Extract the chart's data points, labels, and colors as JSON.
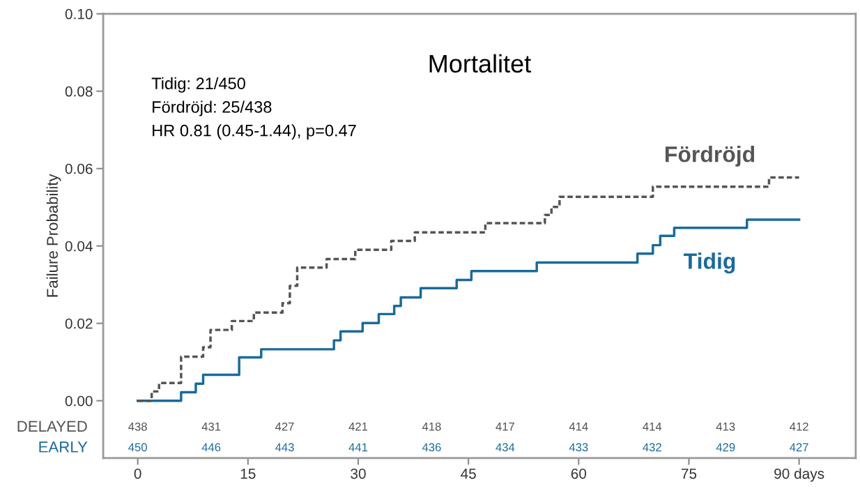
{
  "chart_data": {
    "type": "step",
    "title": "Mortalitet",
    "ylabel": "Failure Probability",
    "xlim": [
      -4.7,
      97.7
    ],
    "ylim": [
      -0.0148,
      0.1
    ],
    "xticks": [
      0,
      15,
      30,
      45,
      60,
      75,
      {
        "value": 90,
        "label": "90 days"
      }
    ],
    "yticks": [
      {
        "value": 0,
        "label": "0.00"
      },
      {
        "value": 0.02,
        "label": "0.02"
      },
      {
        "value": 0.04,
        "label": "0.04"
      },
      {
        "value": 0.06,
        "label": "0.06"
      },
      {
        "value": 0.08,
        "label": "0.08"
      },
      {
        "value": 0.1,
        "label": "0.10"
      }
    ],
    "grid": false,
    "legend": false,
    "series": [
      {
        "name": "Fördröjd",
        "color": "#555555",
        "line_style": "dashed",
        "x": [
          0,
          1.9,
          2.9,
          5.9,
          8.9,
          9.9,
          12.8,
          15.8,
          19.7,
          20.7,
          21.7,
          25.7,
          29.6,
          34.5,
          37.7,
          47.3,
          55.4,
          56.3,
          57.4,
          70.1,
          85.9,
          90
        ],
        "values": [
          0,
          0.0024,
          0.0046,
          0.0114,
          0.0138,
          0.0183,
          0.0206,
          0.0228,
          0.0252,
          0.0297,
          0.0344,
          0.0366,
          0.039,
          0.0413,
          0.0435,
          0.0459,
          0.048,
          0.0501,
          0.0527,
          0.0553,
          0.0577,
          0.0577
        ]
      },
      {
        "name": "Tidig",
        "color": "#1a6a9a",
        "line_style": "solid",
        "x": [
          0,
          5.9,
          7.9,
          8.9,
          13.8,
          16.8,
          26.7,
          27.6,
          30.6,
          32.8,
          34.9,
          35.8,
          38.5,
          43.4,
          45.4,
          54.3,
          68.0,
          70.1,
          71.1,
          73.0,
          82.9,
          90
        ],
        "values": [
          0,
          0.0022,
          0.0044,
          0.0067,
          0.0112,
          0.0133,
          0.0156,
          0.0179,
          0.0201,
          0.0224,
          0.0245,
          0.0267,
          0.0291,
          0.0312,
          0.0335,
          0.0357,
          0.038,
          0.0402,
          0.0426,
          0.0447,
          0.0468,
          0.0468
        ]
      }
    ],
    "annotations": [
      "Tidig: 21/450",
      "Fördröjd: 25/438",
      "HR 0.81 (0.45-1.44), p=0.47",
      "DELAYED",
      "438",
      "431",
      "427",
      "421",
      "418",
      "417",
      "414",
      "414",
      "413",
      "412",
      "EARLY",
      "450",
      "446",
      "443",
      "441",
      "436",
      "434",
      "433",
      "432",
      "429",
      "427"
    ]
  }
}
